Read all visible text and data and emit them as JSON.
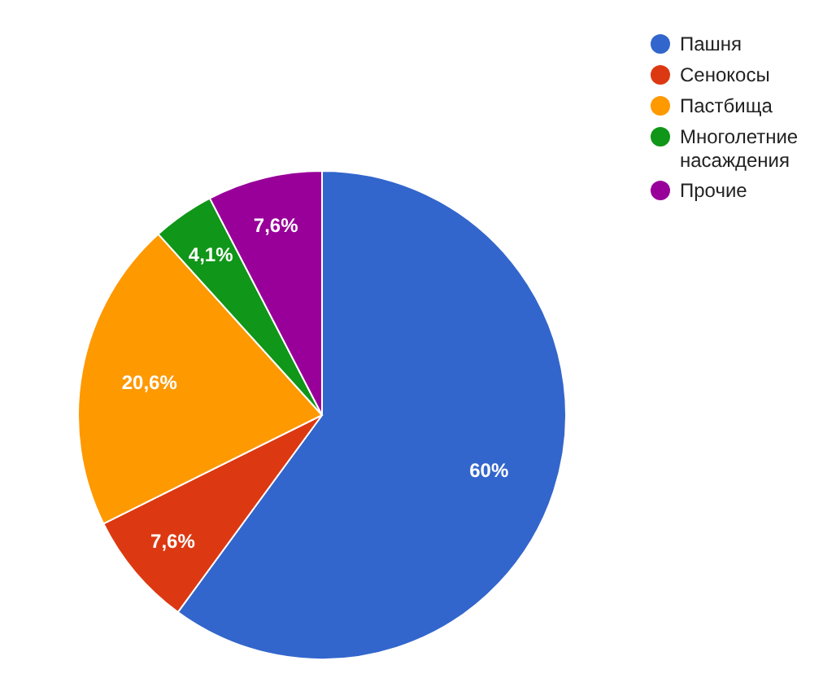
{
  "chart_data": {
    "type": "pie",
    "categories": [
      "Пашня",
      "Сенокосы",
      "Пастбища",
      "Многолетние насаждения",
      "Прочие"
    ],
    "values": [
      60,
      7.6,
      20.6,
      4.1,
      7.6
    ],
    "colors": [
      "#3366cc",
      "#dc3912",
      "#ff9900",
      "#109618",
      "#990099"
    ],
    "value_labels": [
      "60%",
      "7,6%",
      "20,6%",
      "4,1%",
      "7,6%"
    ],
    "legend": "top right"
  }
}
